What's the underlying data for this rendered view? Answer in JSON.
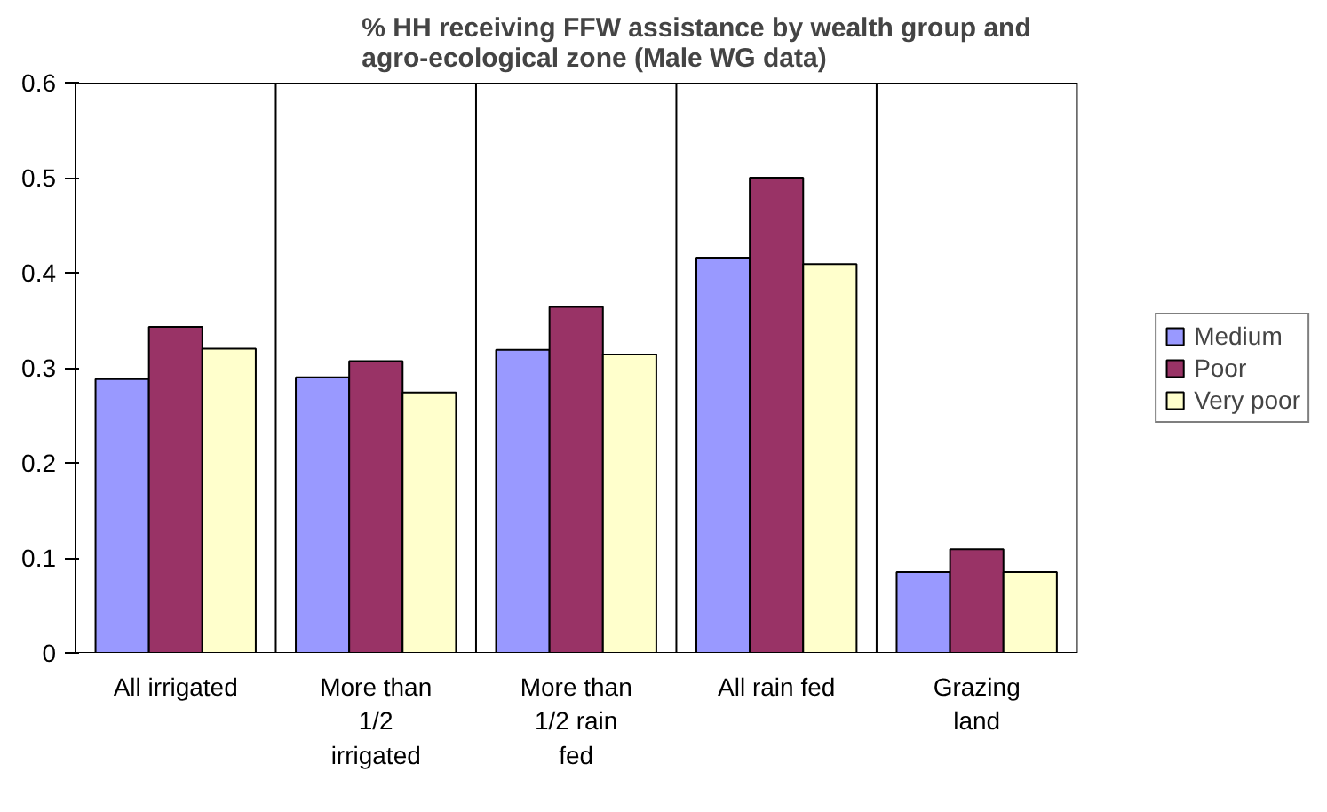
{
  "chart_data": {
    "type": "bar",
    "title": "% HH receiving FFW assistance by wealth group and\nagro-ecological zone (Male WG data)",
    "categories": [
      "All irrigated",
      "More than\n1/2\nirrigated",
      "More than\n1/2 rain\nfed",
      "All rain fed",
      "Grazing\nland"
    ],
    "series": [
      {
        "name": "Medium",
        "color": "#9999ff",
        "values": [
          0.288,
          0.29,
          0.319,
          0.416,
          0.085
        ]
      },
      {
        "name": "Poor",
        "color": "#993366",
        "values": [
          0.343,
          0.307,
          0.364,
          0.5,
          0.109
        ]
      },
      {
        "name": "Very poor",
        "color": "#ffffcc",
        "values": [
          0.32,
          0.274,
          0.314,
          0.409,
          0.085
        ]
      }
    ],
    "ylim": [
      0,
      0.6
    ],
    "yticks": [
      0,
      0.1,
      0.2,
      0.3,
      0.4,
      0.5,
      0.6
    ],
    "grid": "x",
    "legend": "right"
  }
}
